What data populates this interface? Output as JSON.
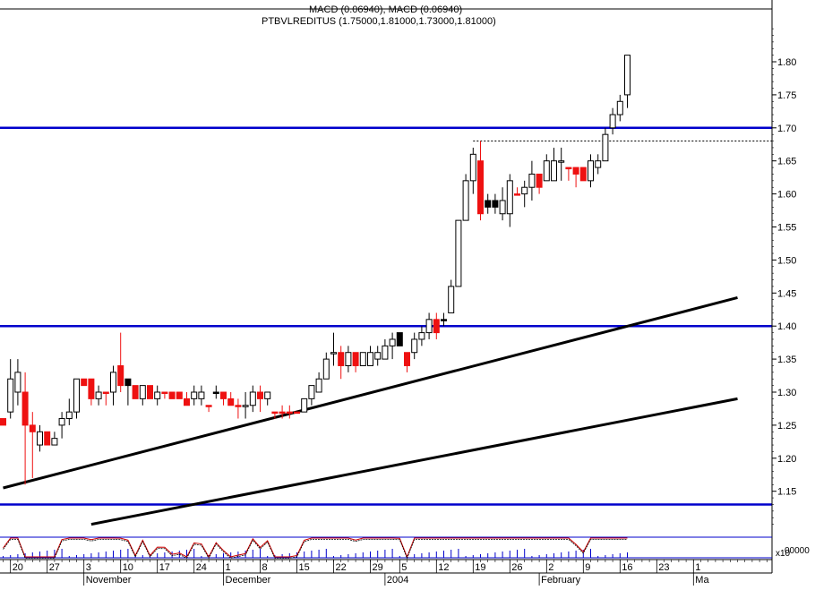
{
  "header": {
    "macd_label": "MACD (0.06940), MACD (0.06940)",
    "instrument_label": "PTBVLREDITUS (1.75000,1.81000,1.73000,1.81000)"
  },
  "colors": {
    "background": "#ffffff",
    "up_candle": "#ffffff",
    "down_candle": "#ee1111",
    "black_candle": "#000000",
    "resistance": "#0000cc",
    "trendline": "#000000",
    "indicator_line": "#cc0000",
    "volume_bar": "#0000cc"
  },
  "chart_data": {
    "type": "candlestick",
    "title": "PTBVLREDITUS (1.75000,1.81000,1.73000,1.81000)",
    "ylim": [
      1.09,
      1.88
    ],
    "y_ticks": [
      1.15,
      1.2,
      1.25,
      1.3,
      1.35,
      1.4,
      1.45,
      1.5,
      1.55,
      1.6,
      1.65,
      1.7,
      1.75,
      1.8
    ],
    "x_tick_labels": [
      {
        "label": "20",
        "idx": 1
      },
      {
        "label": "27",
        "idx": 6
      },
      {
        "label": "3",
        "idx": 11
      },
      {
        "label": "10",
        "idx": 16
      },
      {
        "label": "17",
        "idx": 21
      },
      {
        "label": "24",
        "idx": 26
      },
      {
        "label": "1",
        "idx": 30
      },
      {
        "label": "8",
        "idx": 35
      },
      {
        "label": "15",
        "idx": 40
      },
      {
        "label": "22",
        "idx": 45
      },
      {
        "label": "29",
        "idx": 50
      },
      {
        "label": "5",
        "idx": 54
      },
      {
        "label": "12",
        "idx": 59
      },
      {
        "label": "19",
        "idx": 64
      },
      {
        "label": "26",
        "idx": 69
      },
      {
        "label": "2",
        "idx": 74
      },
      {
        "label": "9",
        "idx": 79
      },
      {
        "label": "16",
        "idx": 84
      },
      {
        "label": "23",
        "idx": 89
      },
      {
        "label": "1",
        "idx": 94
      }
    ],
    "month_labels": [
      {
        "label": "November",
        "idx": 11
      },
      {
        "label": "December",
        "idx": 30
      },
      {
        "label": "2004",
        "idx": 52
      },
      {
        "label": "February",
        "idx": 73
      },
      {
        "label": "Ma",
        "idx": 94
      }
    ],
    "ohlc": [
      [
        1.26,
        1.26,
        1.25,
        1.25,
        "red"
      ],
      [
        1.27,
        1.35,
        1.26,
        1.32,
        "up"
      ],
      [
        1.3,
        1.35,
        1.28,
        1.33,
        "up"
      ],
      [
        1.3,
        1.33,
        1.16,
        1.25,
        "red"
      ],
      [
        1.25,
        1.27,
        1.17,
        1.24,
        "red"
      ],
      [
        1.22,
        1.25,
        1.21,
        1.24,
        "up"
      ],
      [
        1.24,
        1.24,
        1.22,
        1.22,
        "red"
      ],
      [
        1.22,
        1.24,
        1.22,
        1.23,
        "up"
      ],
      [
        1.25,
        1.27,
        1.23,
        1.26,
        "up"
      ],
      [
        1.26,
        1.29,
        1.25,
        1.27,
        "up"
      ],
      [
        1.27,
        1.32,
        1.26,
        1.32,
        "up"
      ],
      [
        1.31,
        1.32,
        1.31,
        1.32,
        "red"
      ],
      [
        1.32,
        1.32,
        1.28,
        1.29,
        "red"
      ],
      [
        1.29,
        1.31,
        1.28,
        1.3,
        "up"
      ],
      [
        1.3,
        1.3,
        1.28,
        1.3,
        "red"
      ],
      [
        1.3,
        1.34,
        1.28,
        1.33,
        "up"
      ],
      [
        1.34,
        1.39,
        1.3,
        1.31,
        "red"
      ],
      [
        1.32,
        1.32,
        1.28,
        1.31,
        "black"
      ],
      [
        1.31,
        1.31,
        1.29,
        1.29,
        "red"
      ],
      [
        1.29,
        1.31,
        1.28,
        1.31,
        "up"
      ],
      [
        1.31,
        1.31,
        1.29,
        1.29,
        "red"
      ],
      [
        1.29,
        1.31,
        1.28,
        1.3,
        "up"
      ],
      [
        1.3,
        1.3,
        1.29,
        1.3,
        "red"
      ],
      [
        1.3,
        1.3,
        1.29,
        1.29,
        "red"
      ],
      [
        1.3,
        1.3,
        1.29,
        1.29,
        "red"
      ],
      [
        1.29,
        1.3,
        1.28,
        1.28,
        "red"
      ],
      [
        1.29,
        1.31,
        1.28,
        1.3,
        "up"
      ],
      [
        1.29,
        1.31,
        1.28,
        1.3,
        "up"
      ],
      [
        1.28,
        1.28,
        1.27,
        1.28,
        "red"
      ],
      [
        1.3,
        1.31,
        1.29,
        1.3,
        "black"
      ],
      [
        1.3,
        1.3,
        1.28,
        1.29,
        "red"
      ],
      [
        1.29,
        1.3,
        1.28,
        1.28,
        "red"
      ],
      [
        1.28,
        1.29,
        1.26,
        1.28,
        "red"
      ],
      [
        1.28,
        1.3,
        1.26,
        1.28,
        "up"
      ],
      [
        1.28,
        1.31,
        1.27,
        1.3,
        "up"
      ],
      [
        1.3,
        1.31,
        1.27,
        1.29,
        "red"
      ],
      [
        1.29,
        1.3,
        1.28,
        1.3,
        "up"
      ],
      [
        1.27,
        1.27,
        1.26,
        1.27,
        "red"
      ],
      [
        1.27,
        1.28,
        1.26,
        1.27,
        "red"
      ],
      [
        1.27,
        1.28,
        1.26,
        1.27,
        "red"
      ],
      [
        1.27,
        1.27,
        1.27,
        1.27,
        "red"
      ],
      [
        1.27,
        1.29,
        1.27,
        1.29,
        "up"
      ],
      [
        1.29,
        1.31,
        1.28,
        1.31,
        "up"
      ],
      [
        1.3,
        1.33,
        1.3,
        1.32,
        "up"
      ],
      [
        1.32,
        1.36,
        1.32,
        1.35,
        "up"
      ],
      [
        1.36,
        1.39,
        1.34,
        1.36,
        "up"
      ],
      [
        1.36,
        1.37,
        1.32,
        1.34,
        "red"
      ],
      [
        1.34,
        1.37,
        1.33,
        1.36,
        "up"
      ],
      [
        1.36,
        1.36,
        1.33,
        1.34,
        "red"
      ],
      [
        1.34,
        1.36,
        1.34,
        1.36,
        "up"
      ],
      [
        1.34,
        1.37,
        1.34,
        1.36,
        "up"
      ],
      [
        1.35,
        1.37,
        1.34,
        1.36,
        "up"
      ],
      [
        1.35,
        1.38,
        1.35,
        1.37,
        "up"
      ],
      [
        1.37,
        1.39,
        1.35,
        1.38,
        "up"
      ],
      [
        1.39,
        1.39,
        1.37,
        1.37,
        "black"
      ],
      [
        1.36,
        1.36,
        1.33,
        1.34,
        "red"
      ],
      [
        1.36,
        1.39,
        1.35,
        1.38,
        "up"
      ],
      [
        1.38,
        1.4,
        1.37,
        1.39,
        "up"
      ],
      [
        1.39,
        1.42,
        1.38,
        1.41,
        "up"
      ],
      [
        1.41,
        1.42,
        1.38,
        1.39,
        "red"
      ],
      [
        1.41,
        1.42,
        1.4,
        1.41,
        "black"
      ],
      [
        1.42,
        1.47,
        1.42,
        1.46,
        "up"
      ],
      [
        1.46,
        1.56,
        1.46,
        1.56,
        "up"
      ],
      [
        1.56,
        1.63,
        1.56,
        1.62,
        "up"
      ],
      [
        1.62,
        1.67,
        1.6,
        1.66,
        "up"
      ],
      [
        1.65,
        1.68,
        1.56,
        1.57,
        "red"
      ],
      [
        1.58,
        1.6,
        1.57,
        1.59,
        "black"
      ],
      [
        1.58,
        1.6,
        1.57,
        1.59,
        "black"
      ],
      [
        1.59,
        1.61,
        1.56,
        1.57,
        "up"
      ],
      [
        1.57,
        1.63,
        1.55,
        1.62,
        "up"
      ],
      [
        1.6,
        1.61,
        1.6,
        1.6,
        "red"
      ],
      [
        1.6,
        1.62,
        1.58,
        1.61,
        "up"
      ],
      [
        1.61,
        1.65,
        1.59,
        1.63,
        "up"
      ],
      [
        1.63,
        1.63,
        1.6,
        1.61,
        "red"
      ],
      [
        1.62,
        1.66,
        1.62,
        1.65,
        "up"
      ],
      [
        1.62,
        1.67,
        1.62,
        1.65,
        "up"
      ],
      [
        1.65,
        1.67,
        1.62,
        1.65,
        "up"
      ],
      [
        1.64,
        1.64,
        1.62,
        1.64,
        "red"
      ],
      [
        1.64,
        1.64,
        1.61,
        1.63,
        "red"
      ],
      [
        1.64,
        1.64,
        1.62,
        1.62,
        "red"
      ],
      [
        1.62,
        1.66,
        1.61,
        1.65,
        "up"
      ],
      [
        1.64,
        1.66,
        1.63,
        1.65,
        "up"
      ],
      [
        1.65,
        1.7,
        1.65,
        1.69,
        "up"
      ],
      [
        1.7,
        1.73,
        1.69,
        1.72,
        "up"
      ],
      [
        1.72,
        1.75,
        1.71,
        1.74,
        "up"
      ],
      [
        1.75,
        1.81,
        1.73,
        1.81,
        "up"
      ]
    ],
    "horizontal_lines": [
      1.7,
      1.4,
      1.13
    ],
    "dotted_line": {
      "value": 1.68,
      "from_idx": 64
    },
    "trendlines": [
      {
        "from": [
          0,
          1.155
        ],
        "to": [
          100,
          1.443
        ]
      },
      {
        "from": [
          12,
          1.1
        ],
        "to": [
          100,
          1.29
        ]
      }
    ],
    "indicator": {
      "scale_label": "x10",
      "value_label": "00000"
    }
  }
}
